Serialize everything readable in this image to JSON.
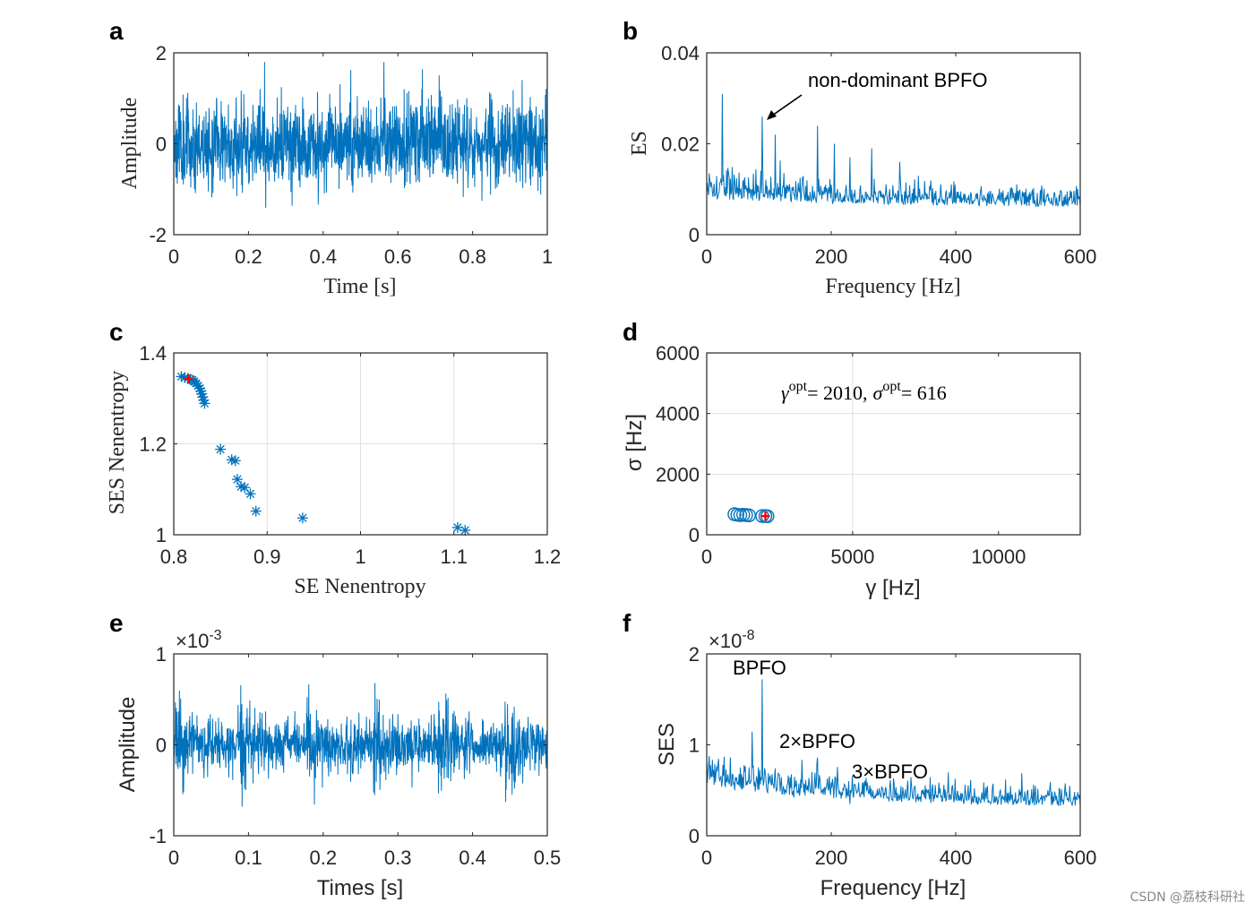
{
  "watermark": "CSDN @荔枝科研社",
  "chart_data": [
    {
      "panel": "a",
      "type": "line",
      "title": "",
      "xlabel": "Time [s]",
      "ylabel": "Amplitude",
      "xlim": [
        0,
        1
      ],
      "ylim": [
        -2,
        2
      ],
      "xticks": [
        "0",
        "0.2",
        "0.4",
        "0.6",
        "0.8",
        "1"
      ],
      "yticks": [
        "-2",
        "0",
        "2"
      ],
      "grid": false,
      "label_font": "serif",
      "signal": {
        "amplitude": 0.55,
        "peak": 1.8,
        "samples": 1600,
        "span": 1,
        "seed": 11
      },
      "color": "#0072bd"
    },
    {
      "panel": "b",
      "type": "line",
      "title": "",
      "xlabel": "Frequency [Hz]",
      "ylabel": "ES",
      "xlim": [
        0,
        600
      ],
      "ylim": [
        0,
        0.04
      ],
      "xticks": [
        "0",
        "200",
        "400",
        "600"
      ],
      "yticks": [
        "0",
        "0.02",
        "0.04"
      ],
      "grid": false,
      "label_font": "serif",
      "spectrum": {
        "baseline": 0.006,
        "noise": 0.004,
        "decay": 0.002,
        "points": 600,
        "seed": 5,
        "peaks": [
          [
            25,
            0.031
          ],
          [
            89,
            0.026
          ],
          [
            110,
            0.022
          ],
          [
            178,
            0.024
          ],
          [
            205,
            0.02
          ],
          [
            265,
            0.019
          ],
          [
            310,
            0.016
          ],
          [
            230,
            0.017
          ]
        ]
      },
      "annotation": {
        "text": "non-dominant BPFO",
        "x": 89,
        "y": 0.026
      },
      "color": "#0072bd"
    },
    {
      "panel": "c",
      "type": "scatter",
      "title": "",
      "xlabel": "SE Nenentropy",
      "ylabel": "SES Nenentropy",
      "xlim": [
        0.8,
        1.2
      ],
      "ylim": [
        1,
        1.4
      ],
      "xticks": [
        "0.8",
        "0.9",
        "1",
        "1.1",
        "1.2"
      ],
      "yticks": [
        "1",
        "1.2",
        "1.4"
      ],
      "grid": true,
      "label_font": "serif",
      "marker": "asterisk",
      "x": [
        0.808,
        0.812,
        0.815,
        0.818,
        0.82,
        0.822,
        0.824,
        0.826,
        0.828,
        0.829,
        0.83,
        0.831,
        0.832,
        0.833,
        0.85,
        0.862,
        0.866,
        0.868,
        0.872,
        0.876,
        0.882,
        0.888,
        0.938,
        1.104,
        1.112
      ],
      "y": [
        1.348,
        1.346,
        1.344,
        1.342,
        1.34,
        1.337,
        1.333,
        1.328,
        1.322,
        1.316,
        1.31,
        1.303,
        1.296,
        1.289,
        1.188,
        1.165,
        1.163,
        1.122,
        1.106,
        1.104,
        1.09,
        1.052,
        1.037,
        1.016,
        1.01
      ],
      "optimum": {
        "x": 0.816,
        "y": 1.343
      },
      "color": "#0072bd"
    },
    {
      "panel": "d",
      "type": "scatter",
      "title": "",
      "xlabel": "γ [Hz]",
      "ylabel": "σ [Hz]",
      "xlim": [
        0,
        12800
      ],
      "ylim": [
        0,
        6000
      ],
      "xticks": [
        {
          "v": 0,
          "t": "0"
        },
        {
          "v": 5000,
          "t": "5000"
        },
        {
          "v": 10000,
          "t": "10000"
        }
      ],
      "yticks": [
        {
          "v": 0,
          "t": "0"
        },
        {
          "v": 2000,
          "t": "2000"
        },
        {
          "v": 4000,
          "t": "4000"
        },
        {
          "v": 6000,
          "t": "6000"
        }
      ],
      "grid": true,
      "label_font": "sans",
      "marker": "circle",
      "x": [
        950,
        1050,
        1150,
        1250,
        1350,
        1450,
        1900,
        2010,
        2080
      ],
      "y": [
        680,
        660,
        650,
        660,
        650,
        640,
        620,
        616,
        610
      ],
      "optimum": {
        "x": 2010,
        "y": 616
      },
      "annotation": {
        "g_sym": "γ",
        "sup": "opt",
        "g_val": "= 2010,",
        "s_sym": "σ",
        "s_val": "= 616"
      },
      "color": "#0072bd"
    },
    {
      "panel": "e",
      "type": "line",
      "title": "",
      "xlabel": "Times [s]",
      "ylabel": "Amplitude",
      "xlim": [
        0,
        0.5
      ],
      "ylim": [
        -1,
        1
      ],
      "xticks": [
        "0",
        "0.1",
        "0.2",
        "0.3",
        "0.4",
        "0.5"
      ],
      "yticks": [
        "-1",
        "0",
        "1"
      ],
      "exponent": {
        "base": "×10",
        "exp": "-3"
      },
      "grid": false,
      "label_font": "sans",
      "signal": {
        "amplitude": 0.24,
        "peak": 0.68,
        "samples": 1400,
        "span": 0.5,
        "seed": 23,
        "bursts": 0.0885
      },
      "color": "#0072bd"
    },
    {
      "panel": "f",
      "type": "line",
      "title": "",
      "xlabel": "Frequency [Hz]",
      "ylabel": "SES",
      "xlim": [
        0,
        600
      ],
      "ylim": [
        0,
        2
      ],
      "xticks": [
        "0",
        "200",
        "400",
        "600"
      ],
      "yticks": [
        "0",
        "1",
        "2"
      ],
      "exponent": {
        "base": "×10",
        "exp": "-8"
      },
      "grid": false,
      "label_font": "sans",
      "spectrum": {
        "baseline": 0.3,
        "noise": 0.22,
        "decay": 0.25,
        "points": 600,
        "seed": 9,
        "peaks": [
          [
            89,
            1.72
          ],
          [
            178,
            0.86
          ],
          [
            267,
            0.5
          ],
          [
            45,
            0.5
          ],
          [
            8,
            0.65
          ],
          [
            140,
            0.42
          ],
          [
            230,
            0.35
          ]
        ]
      },
      "annotations": [
        {
          "text": "BPFO",
          "x": 89,
          "y": 1.72
        },
        {
          "text": "2×BPFO",
          "x": 178,
          "y": 0.86
        },
        {
          "text": "3×BPFO",
          "x": 267,
          "y": 0.5
        }
      ],
      "color": "#0072bd"
    }
  ]
}
